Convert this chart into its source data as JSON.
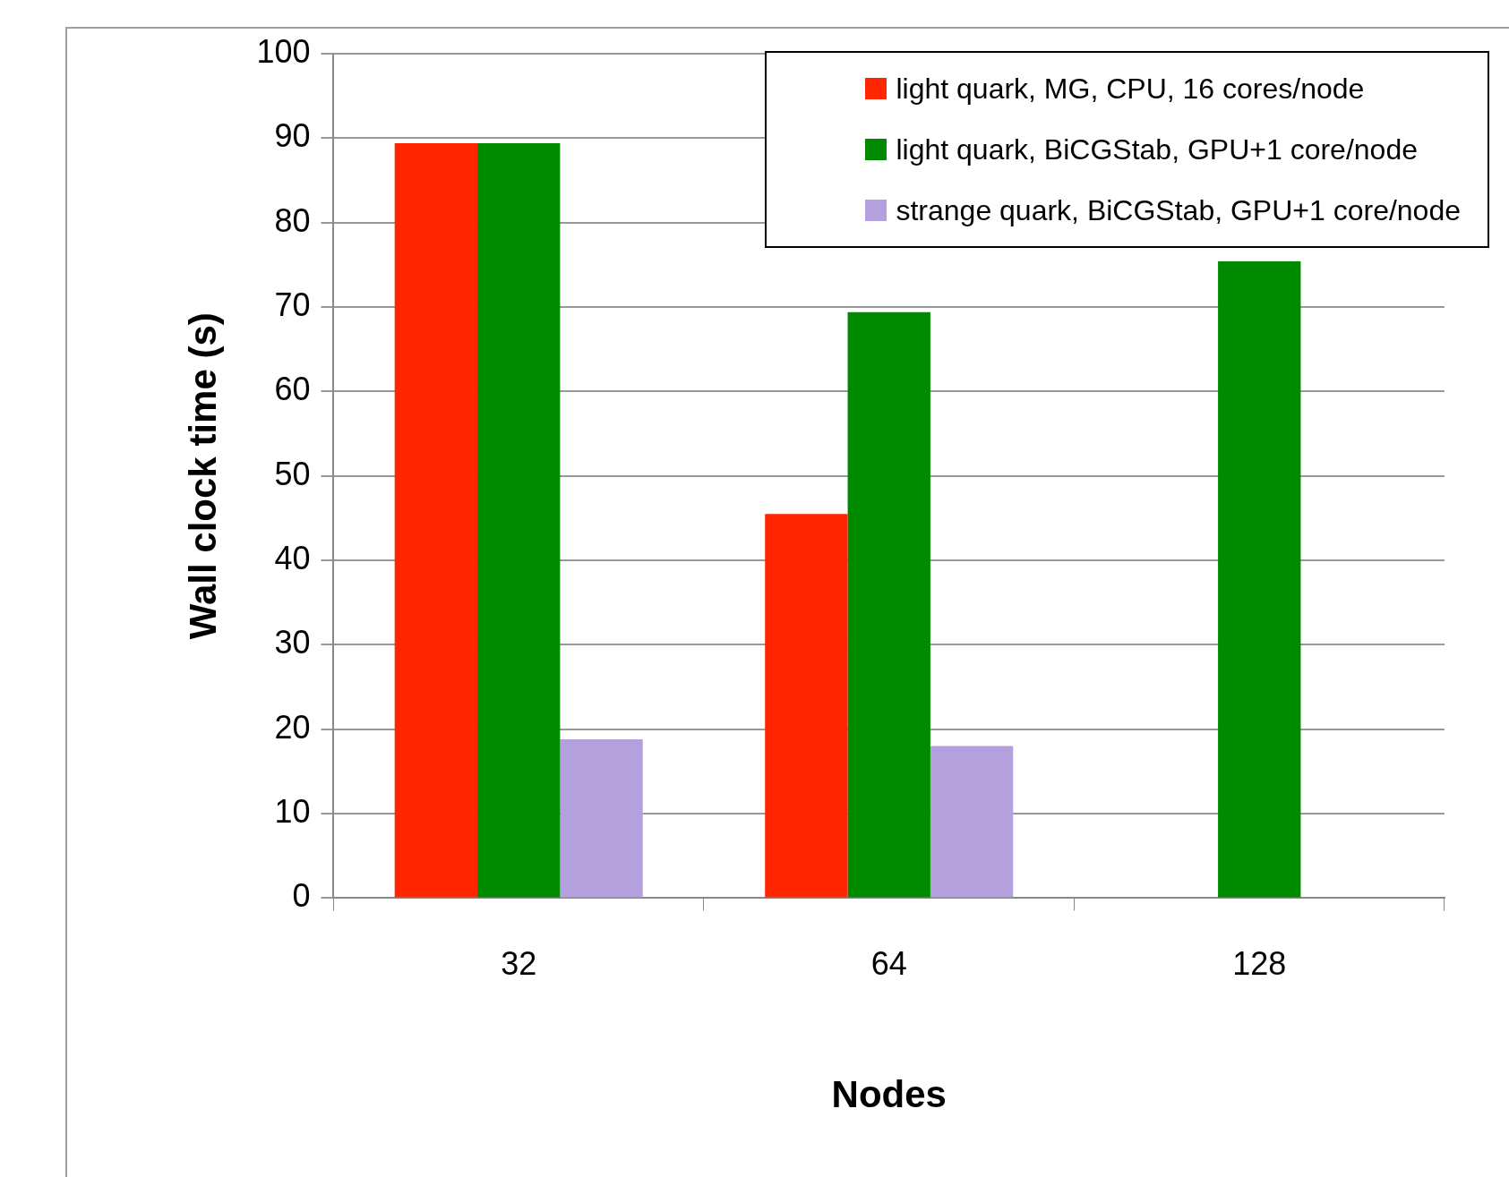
{
  "chart_data": {
    "type": "bar",
    "xlabel": "Nodes",
    "ylabel": "Wall clock time (s)",
    "categories": [
      "32",
      "64",
      "128"
    ],
    "series": [
      {
        "name": "light quark, MG, CPU, 16 cores/node",
        "color": "#ff2600",
        "values": [
          89.4,
          45.5,
          null
        ]
      },
      {
        "name": "light quark, BiCGStab, GPU+1 core/node",
        "color": "#008a00",
        "values": [
          89.4,
          69.4,
          75.4
        ]
      },
      {
        "name": "strange quark, BiCGStab, GPU+1 core/node",
        "color": "#b4a0dc",
        "values": [
          18.8,
          18.0,
          null
        ]
      }
    ],
    "ylim": [
      0,
      100
    ],
    "yticks": [
      0,
      10,
      20,
      30,
      40,
      50,
      60,
      70,
      80,
      90,
      100
    ],
    "grid": "y",
    "legend": "top right"
  }
}
